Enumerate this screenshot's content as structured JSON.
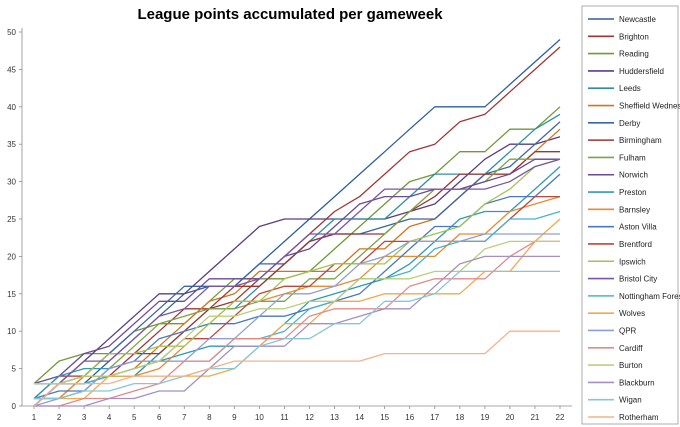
{
  "chart_data": {
    "type": "line",
    "title": "League points accumulated per gameweek",
    "xlabel": "",
    "ylabel": "",
    "x": [
      1,
      2,
      3,
      4,
      5,
      6,
      7,
      8,
      9,
      10,
      11,
      12,
      13,
      14,
      15,
      16,
      17,
      18,
      19,
      20,
      21,
      22
    ],
    "xlim": [
      1,
      22
    ],
    "ylim": [
      0,
      50
    ],
    "yticks": [
      0,
      5,
      10,
      15,
      20,
      25,
      30,
      35,
      40,
      45,
      50
    ],
    "grid": false,
    "legend_position": "right",
    "series": [
      {
        "name": "Newcastle",
        "color": "#2f5f9e",
        "values": [
          3,
          3,
          3,
          6,
          9,
          12,
          15,
          16,
          16,
          19,
          22,
          25,
          28,
          31,
          34,
          37,
          40,
          40,
          40,
          43,
          46,
          49
        ]
      },
      {
        "name": "Brighton",
        "color": "#a33535",
        "values": [
          1,
          4,
          4,
          4,
          7,
          10,
          13,
          13,
          14,
          17,
          20,
          23,
          26,
          28,
          31,
          34,
          35,
          38,
          39,
          42,
          45,
          48
        ]
      },
      {
        "name": "Reading",
        "color": "#6f9a34",
        "values": [
          3,
          6,
          7,
          7,
          10,
          11,
          11,
          14,
          17,
          17,
          17,
          18,
          21,
          24,
          27,
          30,
          31,
          34,
          34,
          37,
          37,
          40
        ]
      },
      {
        "name": "Huddersfield",
        "color": "#5a3d80",
        "values": [
          3,
          3,
          6,
          9,
          12,
          15,
          15,
          18,
          21,
          24,
          25,
          25,
          25,
          25,
          25,
          26,
          27,
          30,
          33,
          35,
          35,
          36
        ]
      },
      {
        "name": "Leeds",
        "color": "#2d8fa5",
        "values": [
          0,
          3,
          3,
          4,
          4,
          7,
          10,
          13,
          13,
          16,
          19,
          22,
          25,
          25,
          25,
          28,
          31,
          31,
          31,
          34,
          37,
          39
        ]
      },
      {
        "name": "Sheffield Wednesday",
        "color": "#d6731a",
        "values": [
          1,
          1,
          4,
          4,
          5,
          8,
          11,
          14,
          15,
          18,
          18,
          18,
          18,
          21,
          21,
          24,
          25,
          28,
          31,
          31,
          34,
          37
        ]
      },
      {
        "name": "Derby",
        "color": "#3a64a8",
        "values": [
          0,
          3,
          4,
          7,
          10,
          13,
          16,
          16,
          16,
          19,
          19,
          22,
          23,
          23,
          24,
          25,
          25,
          28,
          31,
          32,
          35,
          38
        ]
      },
      {
        "name": "Birmingham",
        "color": "#a13333",
        "values": [
          0,
          3,
          4,
          7,
          7,
          7,
          10,
          13,
          16,
          16,
          19,
          22,
          23,
          23,
          23,
          26,
          28,
          31,
          31,
          31,
          34,
          34
        ]
      },
      {
        "name": "Fulham",
        "color": "#7aa545",
        "values": [
          1,
          1,
          2,
          5,
          8,
          11,
          12,
          13,
          13,
          14,
          14,
          17,
          17,
          20,
          23,
          26,
          29,
          29,
          30,
          33,
          33,
          33
        ]
      },
      {
        "name": "Norwich",
        "color": "#6b4a96",
        "values": [
          3,
          4,
          7,
          8,
          11,
          14,
          14,
          17,
          17,
          17,
          20,
          21,
          24,
          27,
          28,
          28,
          29,
          29,
          30,
          31,
          33,
          33
        ]
      },
      {
        "name": "Preston",
        "color": "#2f9ab4",
        "values": [
          1,
          4,
          5,
          5,
          6,
          6,
          7,
          8,
          8,
          8,
          11,
          14,
          15,
          16,
          17,
          19,
          22,
          25,
          26,
          26,
          29,
          32
        ]
      },
      {
        "name": "Barnsley",
        "color": "#e98a2e",
        "values": [
          1,
          1,
          4,
          4,
          4,
          5,
          8,
          11,
          14,
          14,
          15,
          16,
          16,
          17,
          20,
          20,
          20,
          23,
          23,
          26,
          27,
          28
        ]
      },
      {
        "name": "Aston Villa",
        "color": "#4878c4",
        "values": [
          1,
          2,
          2,
          5,
          6,
          9,
          10,
          11,
          11,
          12,
          12,
          13,
          14,
          15,
          18,
          21,
          24,
          24,
          27,
          28,
          28,
          31
        ]
      },
      {
        "name": "Brentford",
        "color": "#c0453c",
        "values": [
          0,
          3,
          3,
          4,
          5,
          6,
          9,
          9,
          12,
          15,
          16,
          16,
          19,
          19,
          22,
          22,
          22,
          22,
          22,
          25,
          28,
          28
        ]
      },
      {
        "name": "Ipswich",
        "color": "#a3c353",
        "values": [
          3,
          3,
          4,
          7,
          7,
          8,
          8,
          11,
          14,
          14,
          17,
          18,
          19,
          19,
          19,
          22,
          23,
          24,
          27,
          29,
          32,
          33
        ]
      },
      {
        "name": "Bristol City",
        "color": "#7b55a6",
        "values": [
          0,
          3,
          6,
          6,
          9,
          12,
          13,
          16,
          16,
          17,
          20,
          23,
          23,
          26,
          29,
          29,
          29,
          29,
          29,
          30,
          32,
          33
        ]
      },
      {
        "name": "Nottingham Forest",
        "color": "#46b4cf",
        "values": [
          3,
          3,
          3,
          4,
          5,
          6,
          6,
          6,
          9,
          9,
          10,
          13,
          14,
          17,
          17,
          18,
          21,
          22,
          22,
          25,
          25,
          26
        ]
      },
      {
        "name": "Wolves",
        "color": "#f4a84a",
        "values": [
          1,
          1,
          1,
          4,
          4,
          4,
          4,
          4,
          5,
          8,
          11,
          11,
          14,
          14,
          15,
          15,
          15,
          15,
          18,
          18,
          22,
          25
        ]
      },
      {
        "name": "QPR",
        "color": "#8e9fd6",
        "values": [
          0,
          1,
          2,
          5,
          6,
          6,
          6,
          9,
          9,
          12,
          15,
          15,
          16,
          19,
          20,
          22,
          22,
          22,
          23,
          23,
          23,
          23
        ]
      },
      {
        "name": "Cardiff",
        "color": "#e08a8a",
        "values": [
          0,
          0,
          1,
          1,
          2,
          3,
          6,
          6,
          9,
          9,
          9,
          12,
          13,
          13,
          13,
          16,
          17,
          17,
          17,
          20,
          22,
          22
        ]
      },
      {
        "name": "Burton",
        "color": "#b8d07a",
        "values": [
          3,
          3,
          4,
          4,
          5,
          6,
          9,
          12,
          12,
          13,
          13,
          14,
          14,
          17,
          17,
          17,
          18,
          18,
          21,
          22,
          22,
          22
        ]
      },
      {
        "name": "Blackburn",
        "color": "#a58fc2",
        "values": [
          0,
          0,
          0,
          1,
          1,
          2,
          2,
          5,
          8,
          8,
          8,
          11,
          11,
          12,
          13,
          13,
          16,
          19,
          20,
          20,
          20,
          20
        ]
      },
      {
        "name": "Wigan",
        "color": "#86c6da",
        "values": [
          1,
          1,
          2,
          2,
          3,
          3,
          4,
          5,
          5,
          8,
          9,
          9,
          11,
          11,
          14,
          14,
          15,
          18,
          18,
          18,
          18,
          18
        ]
      },
      {
        "name": "Rotherham",
        "color": "#f4b28a",
        "values": [
          0,
          3,
          3,
          3,
          4,
          4,
          4,
          5,
          6,
          6,
          6,
          6,
          6,
          6,
          7,
          7,
          7,
          7,
          7,
          10,
          10,
          10
        ]
      }
    ]
  }
}
